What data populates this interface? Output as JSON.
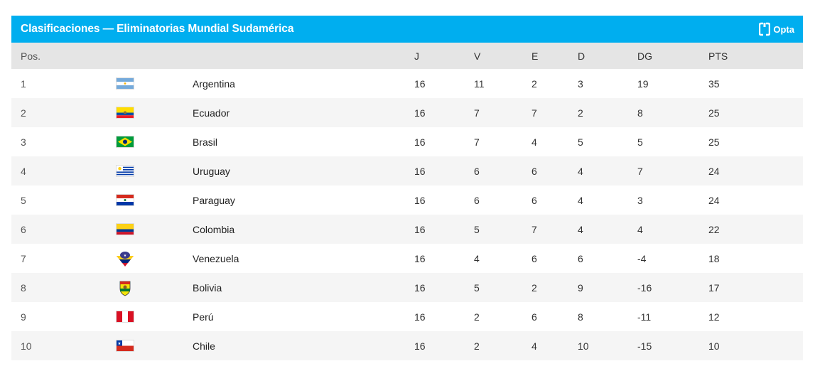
{
  "header": {
    "title": "Clasificaciones — Eliminatorias Mundial Sudamérica",
    "brand": "Opta",
    "accent_color": "#00aeef"
  },
  "columns": {
    "pos": "Pos.",
    "j": "J",
    "v": "V",
    "e": "E",
    "d": "D",
    "dg": "DG",
    "pts": "PTS"
  },
  "rows": [
    {
      "pos": "1",
      "flag": "argentina-flag-icon",
      "team": "Argentina",
      "j": "16",
      "v": "11",
      "e": "2",
      "d": "3",
      "dg": "19",
      "pts": "35"
    },
    {
      "pos": "2",
      "flag": "ecuador-flag-icon",
      "team": "Ecuador",
      "j": "16",
      "v": "7",
      "e": "7",
      "d": "2",
      "dg": "8",
      "pts": "25"
    },
    {
      "pos": "3",
      "flag": "brazil-flag-icon",
      "team": "Brasil",
      "j": "16",
      "v": "7",
      "e": "4",
      "d": "5",
      "dg": "5",
      "pts": "25"
    },
    {
      "pos": "4",
      "flag": "uruguay-flag-icon",
      "team": "Uruguay",
      "j": "16",
      "v": "6",
      "e": "6",
      "d": "4",
      "dg": "7",
      "pts": "24"
    },
    {
      "pos": "5",
      "flag": "paraguay-flag-icon",
      "team": "Paraguay",
      "j": "16",
      "v": "6",
      "e": "6",
      "d": "4",
      "dg": "3",
      "pts": "24"
    },
    {
      "pos": "6",
      "flag": "colombia-flag-icon",
      "team": "Colombia",
      "j": "16",
      "v": "5",
      "e": "7",
      "d": "4",
      "dg": "4",
      "pts": "22"
    },
    {
      "pos": "7",
      "flag": "venezuela-badge-icon",
      "team": "Venezuela",
      "j": "16",
      "v": "4",
      "e": "6",
      "d": "6",
      "dg": "-4",
      "pts": "18"
    },
    {
      "pos": "8",
      "flag": "bolivia-badge-icon",
      "team": "Bolivia",
      "j": "16",
      "v": "5",
      "e": "2",
      "d": "9",
      "dg": "-16",
      "pts": "17"
    },
    {
      "pos": "9",
      "flag": "peru-flag-icon",
      "team": "Perú",
      "j": "16",
      "v": "2",
      "e": "6",
      "d": "8",
      "dg": "-11",
      "pts": "12"
    },
    {
      "pos": "10",
      "flag": "chile-flag-icon",
      "team": "Chile",
      "j": "16",
      "v": "2",
      "e": "4",
      "d": "10",
      "dg": "-15",
      "pts": "10"
    }
  ]
}
